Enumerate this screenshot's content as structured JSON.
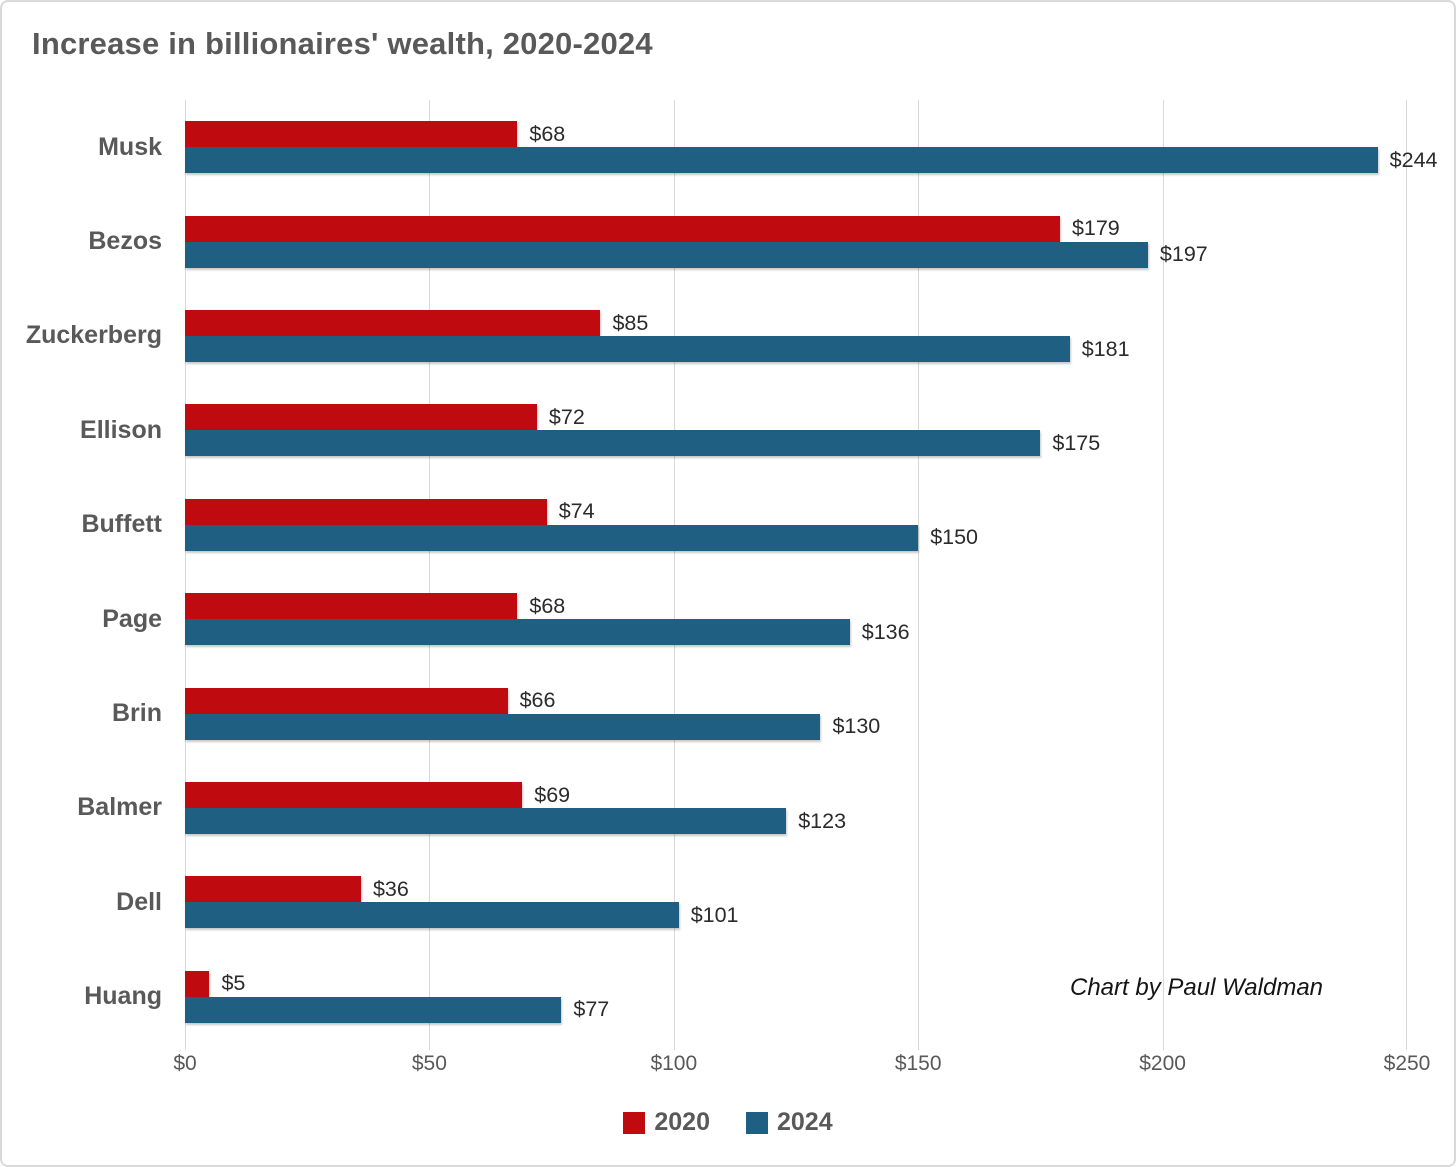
{
  "chart_data": {
    "type": "bar",
    "orientation": "horizontal",
    "title": "Increase in billionaires' wealth, 2020-2024",
    "categories": [
      "Musk",
      "Bezos",
      "Zuckerberg",
      "Ellison",
      "Buffett",
      "Page",
      "Brin",
      "Balmer",
      "Dell",
      "Huang"
    ],
    "series": [
      {
        "name": "2020",
        "color": "#bf0a0f",
        "values": [
          68,
          179,
          85,
          72,
          74,
          68,
          66,
          69,
          36,
          5
        ]
      },
      {
        "name": "2024",
        "color": "#1f6082",
        "values": [
          244,
          197,
          181,
          175,
          150,
          136,
          130,
          123,
          101,
          77
        ]
      }
    ],
    "xlim": [
      0,
      250
    ],
    "x_ticks": [
      "$0",
      "$50",
      "$100",
      "$150",
      "$200",
      "$250"
    ],
    "data_label_prefix": "$",
    "annotation": "Chart by Paul Waldman",
    "legend_position": "bottom",
    "grid": true,
    "colors": {
      "grid": "#d9d9d9",
      "title_text": "#595959",
      "axis_text": "#595959",
      "data_label_text": "#2b2b2b"
    }
  }
}
